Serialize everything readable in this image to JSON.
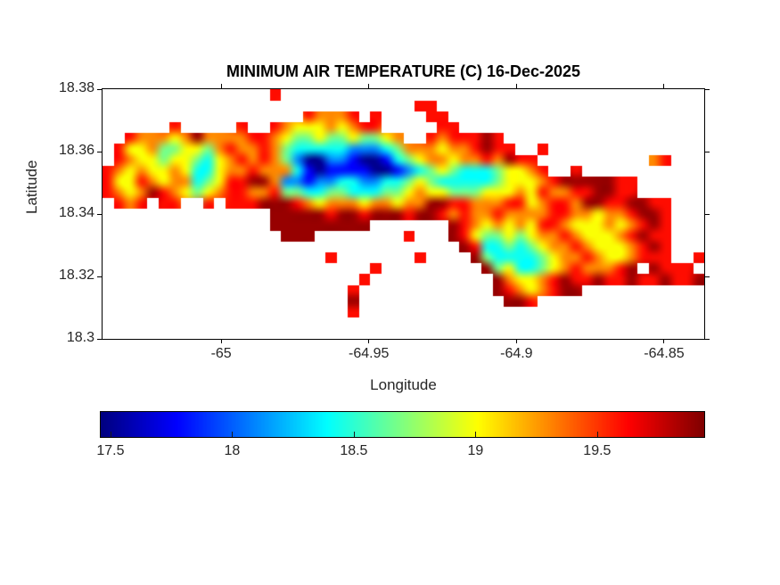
{
  "figure": {
    "title": "MINIMUM AIR TEMPERATURE (C) 16-Dec-2025",
    "background_color": "#ffffff",
    "frame_color": "#000000",
    "tick_label_color": "#262626"
  },
  "chart_data": {
    "type": "heatmap",
    "title": "MINIMUM AIR TEMPERATURE (C) 16-Dec-2025",
    "xlabel": "Longitude",
    "ylabel": "Latitude",
    "units": "C",
    "xlim": [
      -65.0402,
      -64.8364
    ],
    "ylim": [
      18.3,
      18.38
    ],
    "grid_on": false,
    "xticks": [
      {
        "value": -65,
        "label": "-65"
      },
      {
        "value": -64.95,
        "label": "-64.95"
      },
      {
        "value": -64.9,
        "label": "-64.9"
      },
      {
        "value": -64.85,
        "label": "-64.85"
      }
    ],
    "yticks": [
      {
        "value": 18.3,
        "label": "18.3"
      },
      {
        "value": 18.32,
        "label": "18.32"
      },
      {
        "value": 18.34,
        "label": "18.34"
      },
      {
        "value": 18.36,
        "label": "18.36"
      },
      {
        "value": 18.38,
        "label": "18.38"
      }
    ],
    "colorbar": {
      "orientation": "horizontal",
      "colormap": "jet",
      "range": [
        17.46,
        19.94
      ],
      "ticks": [
        {
          "value": 17.5,
          "label": "17.5"
        },
        {
          "value": 18,
          "label": "18"
        },
        {
          "value": 18.5,
          "label": "18.5"
        },
        {
          "value": 19,
          "label": "19"
        },
        {
          "value": 19.5,
          "label": "19.5"
        }
      ]
    },
    "grid": {
      "cols": 54,
      "rows": 23,
      "no_data_char": ".",
      "value_map": {
        "n": 17.5,
        "b": 17.78,
        "a": 18.1,
        "c": 18.42,
        "g": 18.68,
        "y": 19.0,
        "o": 19.3,
        "r": 19.6,
        "d": 19.88
      },
      "rows_encoded": [
        "...............r......................................",
        "............................rr........................",
        "..................rooor.r....rr.......................",
        "......r.....r..royyyoyorr.....rr......................",
        "..roooyodoooorroyggyggyggyo..rorrrdr..................",
        ".ryyoggyygoroorogcccccaaacgoooyoordrr..r..............",
        ".royygyygcyororogannaabnnbcgyooyoorodrr..........or...",
        "royoyyoyccyoorooocbnbbbbnnbacgygcccgyyor..r...........",
        "ryyroyoocgyrrddoaabaaccaaccgygcccccgyyyordddddrr......",
        "royodroygyorroorggccggcccggyoyygggyyyoyroorrddrr......",
        ".ror.rr..r.rrrdddroyoooyooyooddrrooorryorroddrrddrr...",
        "...............dddddrddrdddrddrorooroooorrooyoorddr...",
        "...............ddddddddd.......droyoyoyrroyyyoyordr...",
        "................ddd........r...dryggygyooroyyyordrr...",
        "................................drccgcgyooroyyyordr...",
        "....................r.......r....dgccccgyooroyyorrr..r",
        "........................r.........dgyccgyorooord.drrr.",
        ".......................r...........doyyordrrdrrdrrdrrd",
        "......................r............droyordd...........",
        "......................d.............ddr...............",
        "......................r...............................",
        "......................................................",
        "......................................................"
      ]
    }
  }
}
